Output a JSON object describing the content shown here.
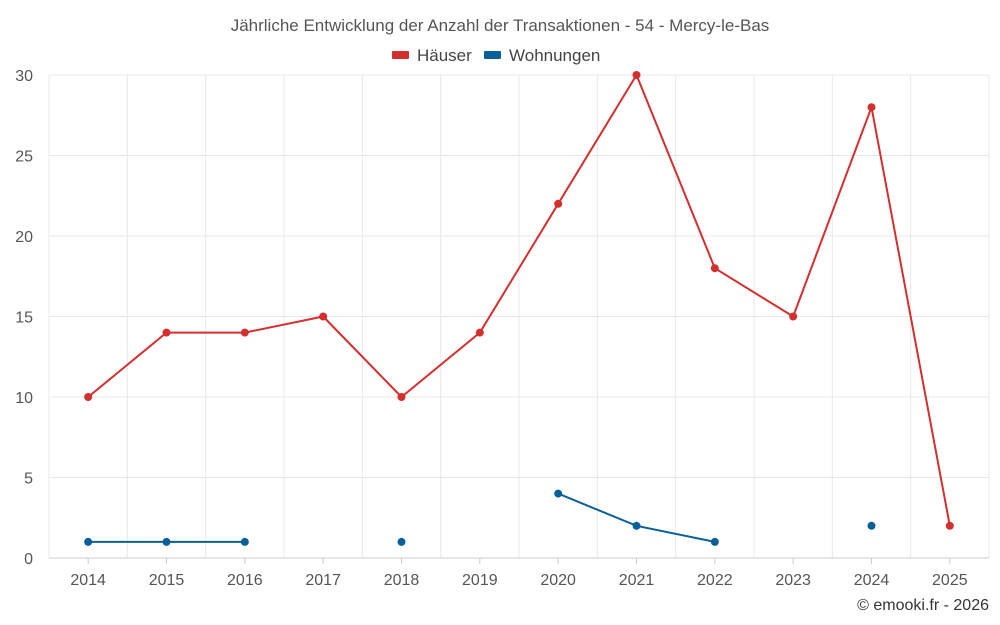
{
  "chart_data": {
    "type": "line",
    "title": "Jährliche Entwicklung der Anzahl der Transaktionen - 54 - Mercy-le-Bas",
    "categories": [
      "2014",
      "2015",
      "2016",
      "2017",
      "2018",
      "2019",
      "2020",
      "2021",
      "2022",
      "2023",
      "2024",
      "2025"
    ],
    "ylim": [
      0,
      30
    ],
    "yticks": [
      0,
      5,
      10,
      15,
      20,
      25,
      30
    ],
    "grid": true,
    "legend_position": "top-center",
    "series": [
      {
        "name": "Häuser",
        "color": "#d32f2f",
        "values": [
          10,
          14,
          14,
          15,
          10,
          14,
          22,
          30,
          18,
          15,
          28,
          2
        ]
      },
      {
        "name": "Wohnungen",
        "color": "#0a5f96",
        "values": [
          1,
          1,
          1,
          null,
          1,
          null,
          4,
          2,
          1,
          null,
          2,
          null
        ]
      }
    ]
  },
  "credit": "© emooki.fr - 2026"
}
